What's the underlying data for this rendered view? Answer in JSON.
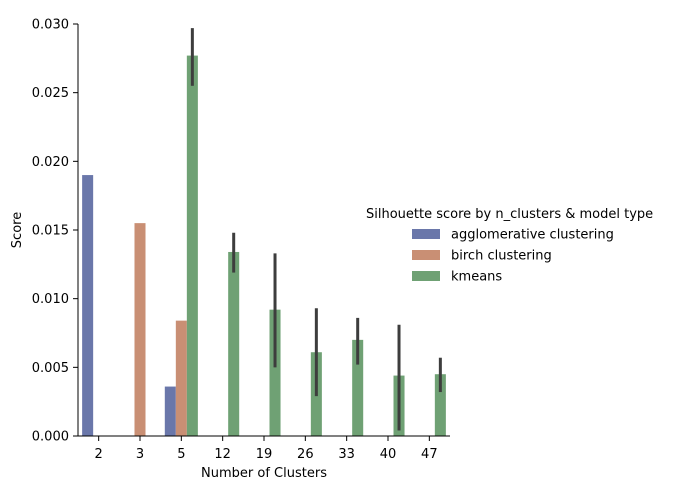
{
  "chart_data": {
    "type": "bar",
    "title": "",
    "xlabel": "Number of Clusters",
    "ylabel": "Score",
    "ylim": [
      0,
      0.03
    ],
    "yticks": [
      "0.000",
      "0.005",
      "0.010",
      "0.015",
      "0.020",
      "0.025",
      "0.030"
    ],
    "categories": [
      "2",
      "3",
      "5",
      "12",
      "19",
      "26",
      "33",
      "40",
      "47"
    ],
    "grid": false,
    "legend": {
      "title": "Silhouette score by n_clusters & model type",
      "placement": "right"
    },
    "series": [
      {
        "name": "agglomerative clustering",
        "color": "#6a77aa",
        "values": [
          0.019,
          null,
          0.0036,
          null,
          null,
          null,
          null,
          null,
          null
        ],
        "error": [
          null,
          null,
          null,
          null,
          null,
          null,
          null,
          null,
          null
        ]
      },
      {
        "name": "birch clustering",
        "color": "#c98f74",
        "values": [
          null,
          0.0155,
          0.0084,
          null,
          null,
          null,
          null,
          null,
          null
        ],
        "error": [
          null,
          null,
          null,
          null,
          null,
          null,
          null,
          null,
          null
        ]
      },
      {
        "name": "kmeans",
        "color": "#6fa174",
        "values": [
          null,
          null,
          0.0277,
          0.0134,
          0.0092,
          0.0061,
          0.007,
          0.0044,
          0.0045
        ],
        "error": [
          null,
          null,
          [
            0.0255,
            0.0297
          ],
          [
            0.0119,
            0.0148
          ],
          [
            0.005,
            0.0133
          ],
          [
            0.0029,
            0.0093
          ],
          [
            0.0052,
            0.0086
          ],
          [
            0.0004,
            0.0081
          ],
          [
            0.0032,
            0.0057
          ]
        ]
      }
    ]
  }
}
